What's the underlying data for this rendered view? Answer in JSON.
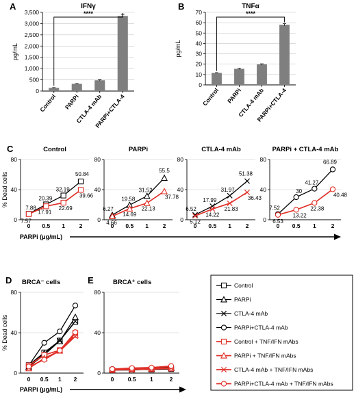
{
  "colors": {
    "control": "#000000",
    "mab": "#e03028",
    "bar": "#7f7f7f",
    "grid": "#c8c8c8"
  },
  "chart_data": [
    {
      "panel": "A",
      "type": "bar",
      "title": "IFNγ",
      "ylabel": "pg/mL",
      "categories": [
        "Control",
        "PARPi",
        "CTLA-4 mAb",
        "PARPi+CTLA-4"
      ],
      "values": [
        140,
        320,
        480,
        3340
      ],
      "errors": [
        15,
        15,
        20,
        70
      ],
      "ylim": [
        0,
        3500
      ],
      "yticks": [
        "0",
        "500",
        "1,000",
        "1,500",
        "2,000",
        "2,500",
        "3,000",
        "3,500"
      ],
      "significance": "****",
      "grid": true
    },
    {
      "panel": "B",
      "type": "bar",
      "title": "TNFα",
      "ylabel": "pg/mL",
      "categories": [
        "Control",
        "PARPi",
        "CTLA-4 mAb",
        "PARPi+CTLA-4"
      ],
      "values": [
        11.5,
        15.5,
        19.8,
        58
      ],
      "errors": [
        0.3,
        0.5,
        0.6,
        1.0
      ],
      "ylim": [
        0,
        70
      ],
      "yticks": [
        "0",
        "10",
        "20",
        "30",
        "40",
        "50",
        "60",
        "70"
      ],
      "significance": "****",
      "grid": true
    },
    {
      "panel": "C",
      "type": "line",
      "title": "Control",
      "ylabel": "% Dead cells",
      "x": [
        "0",
        "0.5",
        "1",
        "2"
      ],
      "ylim": [
        0,
        80
      ],
      "yticks": [
        "0",
        "40",
        "80"
      ],
      "series": [
        {
          "name": "Control",
          "values": [
            7.88,
            20.39,
            32.19,
            50.84
          ],
          "labels": [
            "7.88",
            "20.39",
            "32.19",
            "50.84"
          ]
        },
        {
          "name": "Control + TNF/IFN mAbs",
          "values": [
            7.57,
            17.91,
            22.69,
            39.66
          ],
          "labels": [
            "7.57",
            "17.91",
            "22.69",
            "39.66"
          ]
        }
      ]
    },
    {
      "panel": "C",
      "type": "line",
      "title": "PARPi",
      "x": [
        "0",
        "0.5",
        "1",
        "2"
      ],
      "ylim": [
        0,
        80
      ],
      "yticks": [
        "0",
        "40",
        "80"
      ],
      "series": [
        {
          "name": "PARPi",
          "values": [
            6.27,
            19.58,
            31.52,
            55.5
          ],
          "labels": [
            "6.27",
            "19.58",
            "31.52",
            "55.5"
          ]
        },
        {
          "name": "PARPi + TNF/IFN mAbs",
          "values": [
            4.66,
            14.69,
            22.13,
            37.78
          ],
          "labels": [
            "4.66",
            "14.69",
            "22.13",
            "37.78"
          ]
        }
      ]
    },
    {
      "panel": "C",
      "type": "line",
      "title": "CTLA-4 mAb",
      "x": [
        "0",
        "0.5",
        "1",
        "2"
      ],
      "ylim": [
        0,
        80
      ],
      "yticks": [
        "0",
        "40",
        "80"
      ],
      "series": [
        {
          "name": "CTLA-4 mAb",
          "values": [
            6.52,
            17.99,
            31.97,
            51.38
          ],
          "labels": [
            "6.52",
            "17.99",
            "31.97",
            "51.38"
          ]
        },
        {
          "name": "CTLA-4 mAb + TNF/IFN mAbs",
          "values": [
            5.12,
            14.22,
            21.83,
            36.43
          ],
          "labels": [
            "5.12",
            "14.22",
            "21.83",
            "36.43"
          ]
        }
      ]
    },
    {
      "panel": "C",
      "type": "line",
      "title": "PARPi + CTLA-4 mAb",
      "x": [
        "0",
        "0.5",
        "1",
        "2"
      ],
      "ylim": [
        0,
        80
      ],
      "yticks": [
        "0",
        "40",
        "80"
      ],
      "series": [
        {
          "name": "PARPi+CTLA-4 mAb",
          "values": [
            7.52,
            30,
            41.27,
            66.89
          ],
          "labels": [
            "7.52",
            "30",
            "41.27",
            "66.89"
          ]
        },
        {
          "name": "PARPi+CTLA-4 mAb + TNF/IFN mAbs",
          "values": [
            6.53,
            13.22,
            22.38,
            40.48
          ],
          "labels": [
            "6.53",
            "13.22",
            "22.38",
            "40.48"
          ]
        }
      ]
    },
    {
      "panel": "D",
      "type": "line",
      "title": "BRCA⁻ cells",
      "ylabel": "% Dead cells",
      "xlabel": "PARPi (μg/mL)",
      "x": [
        "0",
        "0.5",
        "1",
        "2"
      ],
      "ylim": [
        0,
        80
      ],
      "yticks": [
        "0",
        "40",
        "80"
      ],
      "series": [
        {
          "name": "Control",
          "values": [
            7.88,
            20.39,
            32.19,
            50.84
          ]
        },
        {
          "name": "PARPi",
          "values": [
            6.27,
            19.58,
            31.52,
            55.5
          ]
        },
        {
          "name": "CTLA-4 mAb",
          "values": [
            6.52,
            17.99,
            31.97,
            51.38
          ]
        },
        {
          "name": "PARPi+CTLA-4 mAb",
          "values": [
            7.52,
            30,
            41.27,
            66.89
          ]
        },
        {
          "name": "Control + TNF/IFN mAbs",
          "values": [
            7.57,
            17.91,
            22.69,
            39.66
          ]
        },
        {
          "name": "PARPi + TNF/IFN mAbs",
          "values": [
            4.66,
            14.69,
            22.13,
            37.78
          ]
        },
        {
          "name": "CTLA-4 mAb + TNF/IFN mAbs",
          "values": [
            5.12,
            14.22,
            21.83,
            36.43
          ]
        },
        {
          "name": "PARPi+CTLA-4 mAb + TNF/IFN mAbs",
          "values": [
            6.53,
            13.22,
            22.38,
            40.48
          ]
        }
      ]
    },
    {
      "panel": "E",
      "type": "line",
      "title": "BRCA⁺ cells",
      "x": [
        "0",
        "0.5",
        "1",
        "2"
      ],
      "ylim": [
        0,
        80
      ],
      "yticks": [
        "0",
        "40",
        "80"
      ],
      "series": [
        {
          "name": "Control",
          "values": [
            3,
            3.5,
            3.5,
            4
          ]
        },
        {
          "name": "PARPi",
          "values": [
            3.5,
            4,
            4,
            5
          ]
        },
        {
          "name": "CTLA-4 mAb",
          "values": [
            3,
            3,
            4,
            4.5
          ]
        },
        {
          "name": "PARPi+CTLA-4 mAb",
          "values": [
            4,
            4.5,
            5,
            6
          ]
        },
        {
          "name": "Control + TNF/IFN mAbs",
          "values": [
            3,
            3.5,
            4,
            4.5
          ]
        },
        {
          "name": "PARPi + TNF/IFN mAbs",
          "values": [
            3.5,
            4,
            4.5,
            5.5
          ]
        },
        {
          "name": "CTLA-4 mAb + TNF/IFN mAbs",
          "values": [
            3,
            3.5,
            4,
            5
          ]
        },
        {
          "name": "PARPi+CTLA-4 mAb + TNF/IFN mAbs",
          "values": [
            4,
            5,
            5.5,
            7
          ]
        }
      ]
    }
  ],
  "panel_c_xlabel": "PARPi (μg/mL)",
  "legend": [
    {
      "label": "Control",
      "color": "control",
      "marker": "square"
    },
    {
      "label": "PARPi",
      "color": "control",
      "marker": "triangle"
    },
    {
      "label": "CTLA-4 mAb",
      "color": "control",
      "marker": "x"
    },
    {
      "label": "PARPi+CTLA-4 mAb",
      "color": "control",
      "marker": "circle"
    },
    {
      "label": "Control + TNF/IFN mAbs",
      "color": "mab",
      "marker": "square"
    },
    {
      "label": "PARPi + TNF/IFN mAbs",
      "color": "mab",
      "marker": "triangle"
    },
    {
      "label": "CTLA-4 mAb + TNF/IFN mAbs",
      "color": "mab",
      "marker": "x"
    },
    {
      "label": "PARPi+CTLA-4 mAb + TNF/IFN mAbs",
      "color": "mab",
      "marker": "circle"
    }
  ]
}
